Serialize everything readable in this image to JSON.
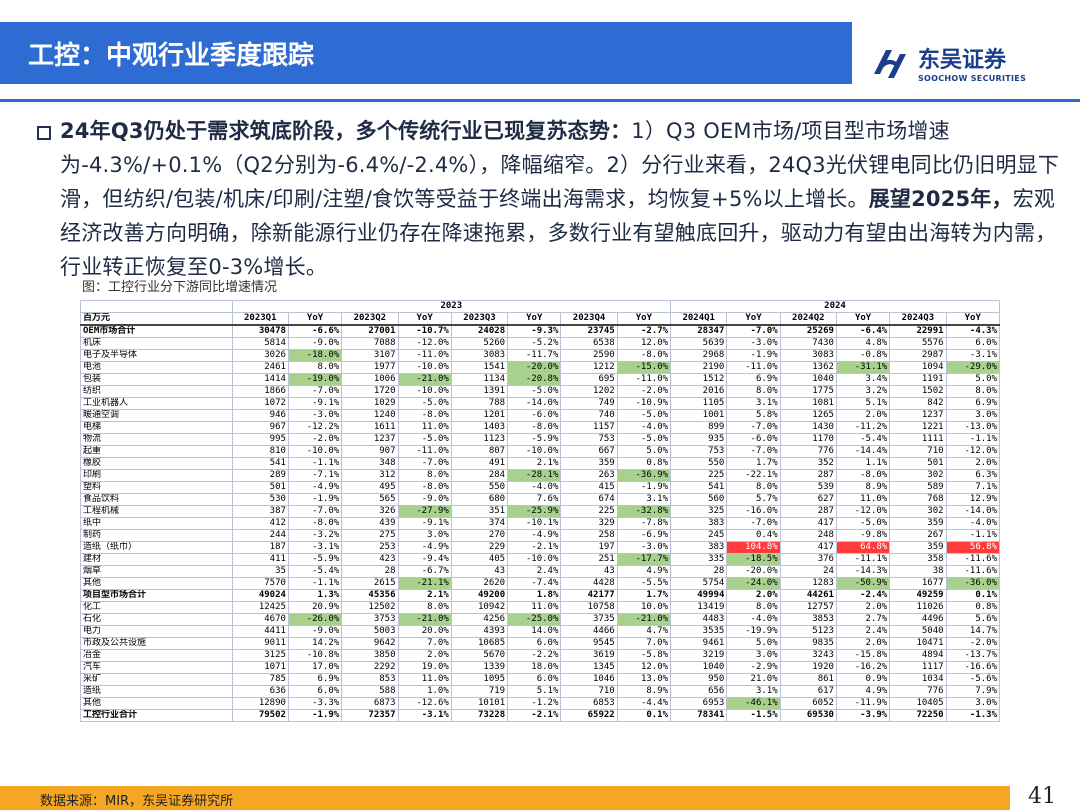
{
  "header": {
    "title": "工控：中观行业季度跟踪",
    "logo_cn": "东吴证券",
    "logo_en": "SOOCHOW SECURITIES"
  },
  "para": {
    "b1": "24年Q3仍处于需求筑底阶段，多个传统行业已现复苏态势：",
    "t1": "1）Q3 OEM市场/项目型市场增速为-4.3%/+0.1%（Q2分别为-6.4%/-2.4%），降幅缩窄。2）分行业来看，24Q3光伏锂电同比仍旧明显下滑，但纺织/包装/机床/印刷/注塑/食饮等受益于终端出海需求，均恢复+5%以上增长。",
    "b2": "展望2025年，",
    "t2": "宏观经济改善方向明确，除新能源行业仍存在降速拖累，多数行业有望触底回升，驱动力有望由出海转为内需，行业转正恢复至0-3%增长。"
  },
  "figure_caption": "图：工控行业分下游同比增速情况",
  "table": {
    "year_2023": "2023",
    "year_2024": "2024",
    "unit": "百万元",
    "col_headers": [
      "2023Q1",
      "YoY",
      "2023Q2",
      "YoY",
      "2023Q3",
      "YoY",
      "2023Q4",
      "YoY",
      "2024Q1",
      "YoY",
      "2024Q2",
      "YoY",
      "2024Q3",
      "YoY"
    ],
    "rows": [
      {
        "t": "total",
        "c": [
          "OEM市场合计",
          "30478",
          "-6.6%",
          "27001",
          "-10.7%",
          "24028",
          "-9.3%",
          "23745",
          "-2.7%",
          "28347",
          "-7.0%",
          "25269",
          "-6.4%",
          "22991",
          "-4.3%"
        ]
      },
      {
        "c": [
          "机床",
          "5814",
          "-9.0%",
          "7088",
          "-12.0%",
          "5260",
          "-5.2%",
          "6538",
          "12.0%",
          "5639",
          "-3.0%",
          "7430",
          "4.8%",
          "5576",
          "6.0%"
        ]
      },
      {
        "c": [
          "电子及半导体",
          "3026",
          "-18.0%",
          "3107",
          "-11.0%",
          "3083",
          "-11.7%",
          "2590",
          "-8.0%",
          "2968",
          "-1.9%",
          "3083",
          "-0.8%",
          "2987",
          "-3.1%"
        ],
        "h": {
          "2": "g"
        }
      },
      {
        "c": [
          "电池",
          "2461",
          "8.0%",
          "1977",
          "-10.0%",
          "1541",
          "-20.0%",
          "1212",
          "-15.0%",
          "2190",
          "-11.0%",
          "1362",
          "-31.1%",
          "1094",
          "-29.0%"
        ],
        "h": {
          "6": "g",
          "8": "g",
          "12": "g",
          "14": "g"
        }
      },
      {
        "c": [
          "包装",
          "1414",
          "-19.0%",
          "1006",
          "-21.0%",
          "1134",
          "-20.8%",
          "695",
          "-11.0%",
          "1512",
          "6.9%",
          "1040",
          "3.4%",
          "1191",
          "5.0%"
        ],
        "h": {
          "2": "g",
          "4": "g",
          "6": "g"
        }
      },
      {
        "c": [
          "纺织",
          "1866",
          "-7.0%",
          "1720",
          "-10.0%",
          "1391",
          "-5.0%",
          "1202",
          "-2.0%",
          "2016",
          "8.0%",
          "1775",
          "3.2%",
          "1502",
          "8.0%"
        ]
      },
      {
        "c": [
          "工业机器人",
          "1072",
          "-9.1%",
          "1029",
          "-5.0%",
          "788",
          "-14.0%",
          "749",
          "-10.9%",
          "1105",
          "3.1%",
          "1081",
          "5.1%",
          "842",
          "6.9%"
        ]
      },
      {
        "c": [
          "暖通空调",
          "946",
          "-3.0%",
          "1240",
          "-8.0%",
          "1201",
          "-6.0%",
          "740",
          "-5.0%",
          "1001",
          "5.8%",
          "1265",
          "2.0%",
          "1237",
          "3.0%"
        ]
      },
      {
        "c": [
          "电梯",
          "967",
          "-12.2%",
          "1611",
          "11.0%",
          "1403",
          "-8.0%",
          "1157",
          "-4.0%",
          "899",
          "-7.0%",
          "1430",
          "-11.2%",
          "1221",
          "-13.0%"
        ]
      },
      {
        "c": [
          "物流",
          "995",
          "-2.0%",
          "1237",
          "-5.0%",
          "1123",
          "-5.9%",
          "753",
          "-5.0%",
          "935",
          "-6.0%",
          "1170",
          "-5.4%",
          "1111",
          "-1.1%"
        ]
      },
      {
        "c": [
          "起重",
          "810",
          "-10.0%",
          "907",
          "-11.0%",
          "807",
          "-10.0%",
          "667",
          "5.0%",
          "753",
          "-7.0%",
          "776",
          "-14.4%",
          "710",
          "-12.0%"
        ]
      },
      {
        "c": [
          "橡胶",
          "541",
          "-1.1%",
          "348",
          "-7.0%",
          "491",
          "2.1%",
          "359",
          "0.8%",
          "550",
          "1.7%",
          "352",
          "1.1%",
          "501",
          "2.0%"
        ]
      },
      {
        "c": [
          "印刷",
          "289",
          "-7.1%",
          "312",
          "8.0%",
          "284",
          "-28.1%",
          "263",
          "-36.9%",
          "225",
          "-22.1%",
          "287",
          "-8.0%",
          "302",
          "6.3%"
        ],
        "h": {
          "6": "g",
          "8": "g"
        }
      },
      {
        "c": [
          "塑料",
          "501",
          "-4.9%",
          "495",
          "-8.0%",
          "550",
          "-4.0%",
          "415",
          "-1.9%",
          "541",
          "8.0%",
          "539",
          "8.9%",
          "589",
          "7.1%"
        ]
      },
      {
        "c": [
          "食品饮料",
          "530",
          "-1.9%",
          "565",
          "-9.0%",
          "680",
          "7.6%",
          "674",
          "3.1%",
          "560",
          "5.7%",
          "627",
          "11.0%",
          "768",
          "12.9%"
        ]
      },
      {
        "c": [
          "工程机械",
          "387",
          "-7.0%",
          "326",
          "-27.9%",
          "351",
          "-25.9%",
          "225",
          "-32.8%",
          "325",
          "-16.0%",
          "287",
          "-12.0%",
          "302",
          "-14.0%"
        ],
        "h": {
          "4": "g",
          "6": "g",
          "8": "g"
        }
      },
      {
        "c": [
          "纸中",
          "412",
          "-8.0%",
          "439",
          "-9.1%",
          "374",
          "-10.1%",
          "329",
          "-7.8%",
          "383",
          "-7.0%",
          "417",
          "-5.0%",
          "359",
          "-4.0%"
        ]
      },
      {
        "c": [
          "制药",
          "244",
          "-3.2%",
          "275",
          "3.0%",
          "270",
          "-4.9%",
          "258",
          "-6.9%",
          "245",
          "0.4%",
          "248",
          "-9.8%",
          "267",
          "-1.1%"
        ]
      },
      {
        "c": [
          "造纸（纸巾）",
          "187",
          "-3.1%",
          "253",
          "-4.9%",
          "229",
          "-2.1%",
          "197",
          "-3.0%",
          "383",
          "104.8%",
          "417",
          "64.8%",
          "359",
          "56.8%"
        ],
        "h": {
          "10": "r",
          "12": "r",
          "14": "r"
        }
      },
      {
        "c": [
          "建材",
          "411",
          "-5.9%",
          "423",
          "-9.4%",
          "405",
          "-10.0%",
          "251",
          "-17.7%",
          "335",
          "-18.5%",
          "376",
          "-11.1%",
          "358",
          "-11.6%"
        ],
        "h": {
          "8": "g",
          "10": "g"
        }
      },
      {
        "c": [
          "烟草",
          "35",
          "-5.4%",
          "28",
          "-6.7%",
          "43",
          "2.4%",
          "43",
          "4.9%",
          "28",
          "-20.0%",
          "24",
          "-14.3%",
          "38",
          "-11.6%"
        ]
      },
      {
        "c": [
          "其他",
          "7570",
          "-1.1%",
          "2615",
          "-21.1%",
          "2620",
          "-7.4%",
          "4428",
          "-5.5%",
          "5754",
          "-24.0%",
          "1283",
          "-50.9%",
          "1677",
          "-36.0%"
        ],
        "h": {
          "4": "g",
          "10": "g",
          "12": "g",
          "14": "g"
        }
      },
      {
        "t": "total",
        "c": [
          "项目型市场合计",
          "49024",
          "1.3%",
          "45356",
          "2.1%",
          "49200",
          "1.8%",
          "42177",
          "1.7%",
          "49994",
          "2.0%",
          "44261",
          "-2.4%",
          "49259",
          "0.1%"
        ]
      },
      {
        "c": [
          "化工",
          "12425",
          "20.9%",
          "12502",
          "8.0%",
          "10942",
          "11.0%",
          "10758",
          "10.0%",
          "13419",
          "8.0%",
          "12757",
          "2.0%",
          "11026",
          "0.8%"
        ]
      },
      {
        "c": [
          "石化",
          "4670",
          "-26.0%",
          "3753",
          "-21.0%",
          "4256",
          "-25.0%",
          "3735",
          "-21.0%",
          "4483",
          "-4.0%",
          "3853",
          "2.7%",
          "4496",
          "5.6%"
        ],
        "h": {
          "2": "g",
          "4": "g",
          "6": "g",
          "8": "g"
        }
      },
      {
        "c": [
          "电力",
          "4411",
          "-9.0%",
          "5003",
          "20.0%",
          "4393",
          "14.0%",
          "4466",
          "4.7%",
          "3535",
          "-19.9%",
          "5123",
          "2.4%",
          "5040",
          "14.7%"
        ]
      },
      {
        "c": [
          "市政及公共设施",
          "9011",
          "14.2%",
          "9642",
          "7.0%",
          "10685",
          "6.0%",
          "9545",
          "7.0%",
          "9461",
          "5.0%",
          "9835",
          "2.0%",
          "10471",
          "-2.0%"
        ]
      },
      {
        "c": [
          "冶金",
          "3125",
          "-10.8%",
          "3850",
          "2.0%",
          "5670",
          "-2.2%",
          "3619",
          "-5.8%",
          "3219",
          "3.0%",
          "3243",
          "-15.8%",
          "4894",
          "-13.7%"
        ]
      },
      {
        "c": [
          "汽车",
          "1071",
          "17.0%",
          "2292",
          "19.0%",
          "1339",
          "18.0%",
          "1345",
          "12.0%",
          "1040",
          "-2.9%",
          "1920",
          "-16.2%",
          "1117",
          "-16.6%"
        ]
      },
      {
        "c": [
          "采矿",
          "785",
          "6.9%",
          "853",
          "11.0%",
          "1095",
          "6.0%",
          "1046",
          "13.0%",
          "950",
          "21.0%",
          "861",
          "0.9%",
          "1034",
          "-5.6%"
        ]
      },
      {
        "c": [
          "造纸",
          "636",
          "6.0%",
          "588",
          "1.0%",
          "719",
          "5.1%",
          "710",
          "8.9%",
          "656",
          "3.1%",
          "617",
          "4.9%",
          "776",
          "7.9%"
        ]
      },
      {
        "c": [
          "其他",
          "12890",
          "-3.3%",
          "6873",
          "-12.6%",
          "10101",
          "-1.2%",
          "6853",
          "-4.4%",
          "6953",
          "-46.1%",
          "6052",
          "-11.9%",
          "10405",
          "3.0%"
        ],
        "h": {
          "10": "g"
        }
      },
      {
        "t": "total",
        "c": [
          "工控行业合计",
          "79502",
          "-1.9%",
          "72357",
          "-3.1%",
          "73228",
          "-2.1%",
          "65922",
          "0.1%",
          "78341",
          "-1.5%",
          "69530",
          "-3.9%",
          "72250",
          "-1.3%"
        ]
      }
    ]
  },
  "footer": {
    "source": "数据来源：MIR，东吴证券研究所",
    "page": "41"
  }
}
